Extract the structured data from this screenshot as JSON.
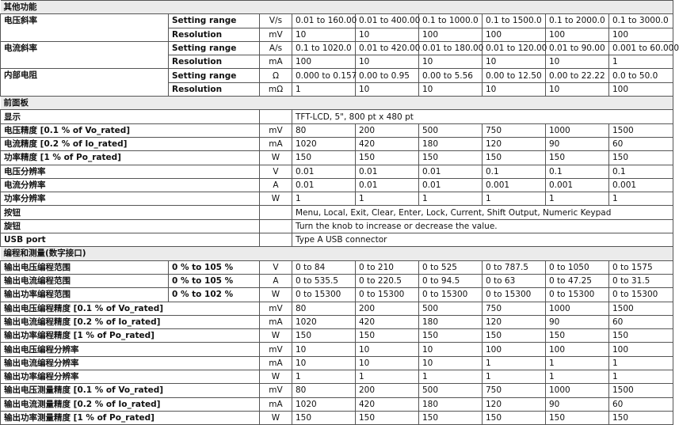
{
  "sections": [
    {
      "title": "其他功能",
      "rows": [
        {
          "label": "电压斜率",
          "sub": "Setting range",
          "unit": "V/s",
          "values": [
            "0.01 to 160.00",
            "0.01 to 400.00",
            "0.1 to 1000.0",
            "0.1 to 1500.0",
            "0.1 to 2000.0",
            "0.1 to 3000.0"
          ]
        },
        {
          "label": "",
          "sub": "Resolution",
          "unit": "mV",
          "values": [
            "10",
            "10",
            "100",
            "100",
            "100",
            "100"
          ]
        },
        {
          "label": "电流斜率",
          "sub": "Setting range",
          "unit": "A/s",
          "values": [
            "0.1 to 1020.0",
            "0.01 to 420.00",
            "0.01 to 180.00",
            "0.01 to 120.00",
            "0.01 to 90.00",
            "0.001 to 60.000"
          ]
        },
        {
          "label": "",
          "sub": "Resolution",
          "unit": "mA",
          "values": [
            "100",
            "10",
            "10",
            "10",
            "10",
            "1"
          ]
        },
        {
          "label": "内部电阻",
          "sub": "Setting range",
          "unit": "Ω",
          "values": [
            "0.000 to 0.157",
            "0.00 to 0.95",
            "0.00 to 5.56",
            "0.00 to 12.50",
            "0.00 to 22.22",
            "0.0 to 50.0"
          ]
        },
        {
          "label": "",
          "sub": "Resolution",
          "unit": "mΩ",
          "values": [
            "1",
            "10",
            "10",
            "10",
            "10",
            "100"
          ]
        }
      ]
    },
    {
      "title": "前面板",
      "rows": [
        {
          "label": "显示",
          "span": "TFT-LCD, 5\", 800 pt x 480 pt"
        },
        {
          "label": "电压精度 [0.1 % of Vo_rated]",
          "unit": "mV",
          "values": [
            "80",
            "200",
            "500",
            "750",
            "1000",
            "1500"
          ]
        },
        {
          "label": "电流精度 [0.2 % of Io_rated]",
          "unit": "mA",
          "values": [
            "1020",
            "420",
            "180",
            "120",
            "90",
            "60"
          ]
        },
        {
          "label": "功率精度 [1 % of Po_rated]",
          "unit": "W",
          "values": [
            "150",
            "150",
            "150",
            "150",
            "150",
            "150"
          ]
        },
        {
          "label": "电压分辨率",
          "unit": "V",
          "values": [
            "0.01",
            "0.01",
            "0.01",
            "0.1",
            "0.1",
            "0.1"
          ]
        },
        {
          "label": "电流分辨率",
          "unit": "A",
          "values": [
            "0.01",
            "0.01",
            "0.01",
            "0.001",
            "0.001",
            "0.001"
          ]
        },
        {
          "label": "功率分辨率",
          "unit": "W",
          "values": [
            "1",
            "1",
            "1",
            "1",
            "1",
            "1"
          ]
        },
        {
          "label": "按钮",
          "span": "Menu, Local, Exit, Clear, Enter, Lock, Current, Shift Output, Numeric Keypad"
        },
        {
          "label": "旋钮",
          "span": "Turn the knob to increase or decrease the value."
        },
        {
          "label": "USB port",
          "span": "Type A USB connector"
        }
      ]
    },
    {
      "title": "编程和测量(数字接口)",
      "rows": [
        {
          "label": "输出电压编程范围",
          "sub": "0 % to 105 %",
          "unit": "V",
          "values": [
            "0 to 84",
            "0 to 210",
            "0 to 525",
            "0 to 787.5",
            "0 to 1050",
            "0 to 1575"
          ]
        },
        {
          "label": "输出电流编程范围",
          "sub": "0 % to 105 %",
          "unit": "A",
          "values": [
            "0 to 535.5",
            "0 to 220.5",
            "0 to 94.5",
            "0 to 63",
            "0 to 47.25",
            "0 to 31.5"
          ]
        },
        {
          "label": "输出功率编程范围",
          "sub": "0 % to 102 %",
          "unit": "W",
          "values": [
            "0 to 15300",
            "0 to 15300",
            "0 to 15300",
            "0 to 15300",
            "0 to 15300",
            "0 to 15300"
          ]
        },
        {
          "label": "输出电压编程精度 [0.1 % of Vo_rated]",
          "unit": "mV",
          "values": [
            "80",
            "200",
            "500",
            "750",
            "1000",
            "1500"
          ]
        },
        {
          "label": "输出电流编程精度 [0.2 % of Io_rated]",
          "unit": "mA",
          "values": [
            "1020",
            "420",
            "180",
            "120",
            "90",
            "60"
          ]
        },
        {
          "label": "输出功率编程精度 [1 % of Po_rated]",
          "unit": "W",
          "values": [
            "150",
            "150",
            "150",
            "150",
            "150",
            "150"
          ]
        },
        {
          "label": "输出电压编程分辨率",
          "unit": "mV",
          "values": [
            "10",
            "10",
            "10",
            "100",
            "100",
            "100"
          ]
        },
        {
          "label": "输出电流编程分辨率",
          "unit": "mA",
          "values": [
            "10",
            "10",
            "10",
            "1",
            "1",
            "1"
          ]
        },
        {
          "label": "输出功率编程分辨率",
          "unit": "W",
          "values": [
            "1",
            "1",
            "1",
            "1",
            "1",
            "1"
          ]
        },
        {
          "label": "输出电压测量精度 [0.1 % of Vo_rated]",
          "unit": "mV",
          "values": [
            "80",
            "200",
            "500",
            "750",
            "1000",
            "1500"
          ]
        },
        {
          "label": "输出电流测量精度 [0.2 % of Io_rated]",
          "unit": "mA",
          "values": [
            "1020",
            "420",
            "180",
            "120",
            "90",
            "60"
          ]
        },
        {
          "label": "输出功率测量精度 [1 % of Po_rated]",
          "unit": "W",
          "values": [
            "150",
            "150",
            "150",
            "150",
            "150",
            "150"
          ]
        }
      ]
    }
  ]
}
